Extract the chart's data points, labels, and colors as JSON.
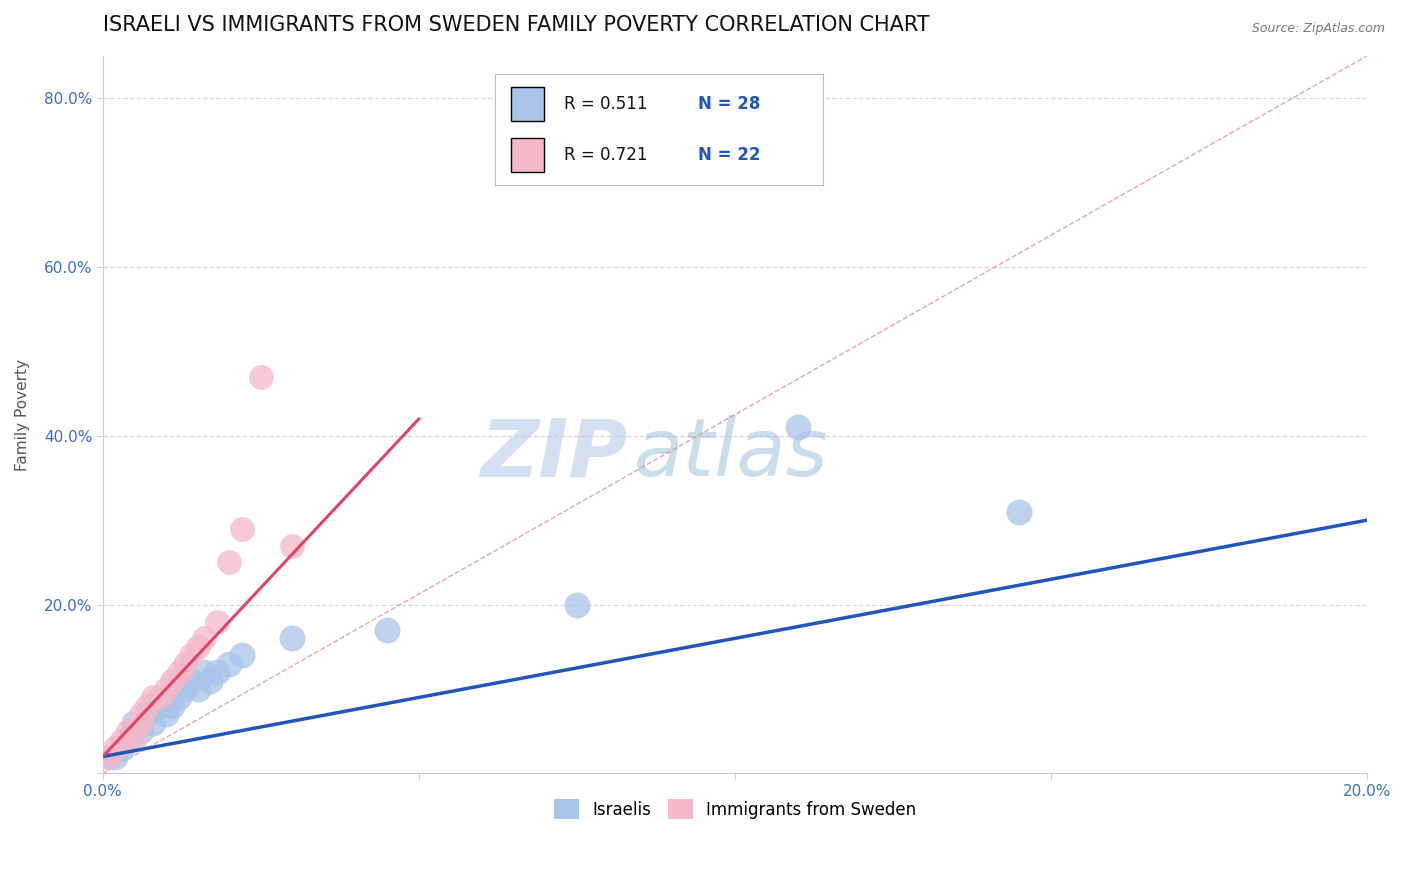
{
  "title": "ISRAELI VS IMMIGRANTS FROM SWEDEN FAMILY POVERTY CORRELATION CHART",
  "source_text": "Source: ZipAtlas.com",
  "ylabel": "Family Poverty",
  "xlim": [
    0.0,
    0.2
  ],
  "ylim": [
    0.0,
    0.85
  ],
  "x_ticks": [
    0.0,
    0.05,
    0.1,
    0.15,
    0.2
  ],
  "y_ticks": [
    0.0,
    0.2,
    0.4,
    0.6,
    0.8
  ],
  "israeli_color": "#a8c4e8",
  "immigrant_color": "#f4b8c8",
  "israeli_line_color": "#2255bb",
  "immigrant_line_color": "#dd4466",
  "diagonal_color": "#e09098",
  "R_israeli": 0.511,
  "N_israeli": 28,
  "R_immigrant": 0.721,
  "N_immigrant": 22,
  "watermark_zip": "ZIP",
  "watermark_atlas": "atlas",
  "background_color": "#ffffff",
  "grid_color": "#ccccdd",
  "title_fontsize": 15,
  "label_fontsize": 11,
  "israeli_scatter_x": [
    0.001,
    0.002,
    0.003,
    0.004,
    0.005,
    0.005,
    0.006,
    0.007,
    0.008,
    0.008,
    0.009,
    0.01,
    0.01,
    0.011,
    0.012,
    0.013,
    0.014,
    0.015,
    0.016,
    0.017,
    0.018,
    0.02,
    0.022,
    0.03,
    0.045,
    0.075,
    0.11,
    0.145
  ],
  "israeli_scatter_y": [
    0.02,
    0.02,
    0.03,
    0.04,
    0.05,
    0.06,
    0.05,
    0.07,
    0.06,
    0.08,
    0.08,
    0.07,
    0.09,
    0.08,
    0.09,
    0.1,
    0.11,
    0.1,
    0.12,
    0.11,
    0.12,
    0.13,
    0.14,
    0.16,
    0.17,
    0.2,
    0.41,
    0.31
  ],
  "immigrant_scatter_x": [
    0.001,
    0.002,
    0.003,
    0.004,
    0.005,
    0.006,
    0.006,
    0.007,
    0.008,
    0.009,
    0.01,
    0.011,
    0.012,
    0.013,
    0.014,
    0.015,
    0.016,
    0.018,
    0.02,
    0.022,
    0.025,
    0.03
  ],
  "immigrant_scatter_y": [
    0.02,
    0.03,
    0.04,
    0.05,
    0.04,
    0.06,
    0.07,
    0.08,
    0.09,
    0.09,
    0.1,
    0.11,
    0.12,
    0.13,
    0.14,
    0.15,
    0.16,
    0.18,
    0.25,
    0.29,
    0.47,
    0.27
  ]
}
